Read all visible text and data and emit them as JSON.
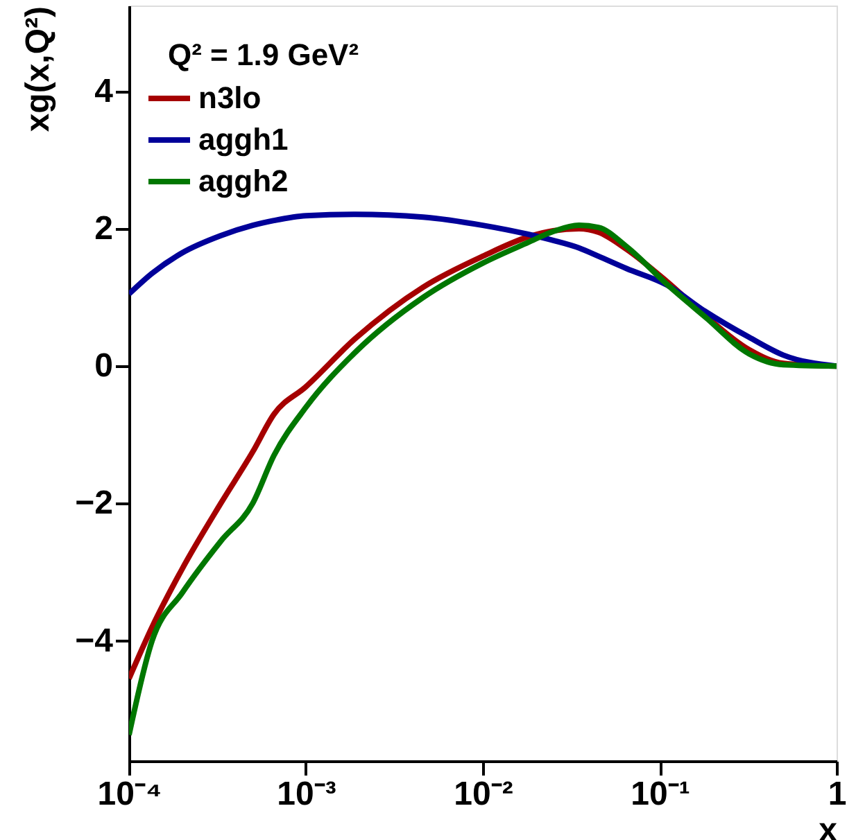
{
  "chart_data": {
    "type": "line",
    "xlabel": "x",
    "ylabel": "xg(x,Q²)",
    "annotations": [
      "Q² = 1.9 GeV²"
    ],
    "x": [
      0.0001,
      0.000135,
      0.0002,
      0.00033,
      0.0005,
      0.00066,
      0.001,
      0.0019,
      0.0046,
      0.01,
      0.018,
      0.025,
      0.035,
      0.045,
      0.065,
      0.11,
      0.18,
      0.32,
      0.5,
      1
    ],
    "series": [
      {
        "name": "n3lo",
        "color": "#a50000",
        "values": [
          -4.55,
          -3.8,
          -2.95,
          -2.0,
          -1.25,
          -0.7,
          -0.3,
          0.4,
          1.15,
          1.6,
          1.88,
          1.97,
          2.0,
          1.95,
          1.7,
          1.23,
          0.74,
          0.24,
          0.04,
          0
        ]
      },
      {
        "name": "aggh1",
        "color": "#000099",
        "values": [
          1.05,
          1.35,
          1.65,
          1.9,
          2.05,
          2.12,
          2.19,
          2.21,
          2.17,
          2.05,
          1.92,
          1.83,
          1.72,
          1.6,
          1.42,
          1.18,
          0.8,
          0.42,
          0.16,
          0
        ]
      },
      {
        "name": "aggh2",
        "color": "#007700",
        "values": [
          -5.37,
          -4.0,
          -3.3,
          -2.55,
          -2.0,
          -1.3,
          -0.6,
          0.2,
          1.0,
          1.5,
          1.8,
          1.96,
          2.05,
          2.02,
          1.74,
          1.19,
          0.72,
          0.18,
          0.02,
          0
        ]
      }
    ],
    "log": "x",
    "xlim": [
      0.0001,
      1
    ],
    "ylim": [
      -5.75,
      5.25
    ],
    "xticks": [
      {
        "value": 0.0001,
        "label": "10⁻⁴"
      },
      {
        "value": 0.001,
        "label": "10⁻³"
      },
      {
        "value": 0.01,
        "label": "10⁻²"
      },
      {
        "value": 0.1,
        "label": "10⁻¹"
      },
      1
    ],
    "yticks": [
      -4,
      -2,
      0,
      2,
      4
    ],
    "grid": false,
    "legend": "top left",
    "line_style": "solid",
    "marker": "none"
  }
}
